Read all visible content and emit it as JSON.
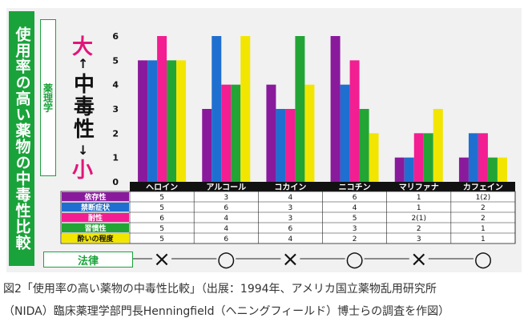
{
  "side_title": "使用率の高い薬物の中毒性比較",
  "yakuri_label": "薬理学",
  "hourei_label": "法律",
  "scale": {
    "big": "大",
    "mid": "中毒性",
    "small": "小",
    "arrow_up": "↑",
    "arrow_down": "↓"
  },
  "caption": {
    "line1": "図2「使用率の高い薬物の中毒性比較」（出展：1994年、アメリカ国立薬物乱用研究所",
    "line2": "（NIDA）臨床薬理学部門長Henningfield（ヘニングフィールド）博士らの調査を作図）"
  },
  "chart_data": {
    "type": "bar",
    "categories": [
      "ヘロイン",
      "アルコール",
      "コカイン",
      "ニコチン",
      "マリファナ",
      "カフェイン"
    ],
    "yticks": [
      "0",
      "1",
      "2",
      "3",
      "4",
      "5",
      "6"
    ],
    "ylim": [
      0,
      6
    ],
    "series": [
      {
        "name": "依存性",
        "color": "#8a1a9c",
        "values": [
          5,
          3,
          4,
          6,
          1,
          1
        ],
        "labels": [
          "5",
          "3",
          "4",
          "6",
          "1",
          "1(2)"
        ]
      },
      {
        "name": "禁断症状",
        "color": "#1f6fd1",
        "values": [
          5,
          6,
          3,
          4,
          1,
          2
        ],
        "labels": [
          "5",
          "6",
          "3",
          "4",
          "1",
          "2"
        ]
      },
      {
        "name": "耐性",
        "color": "#f21e92",
        "values": [
          6,
          4,
          3,
          5,
          2,
          2
        ],
        "labels": [
          "6",
          "4",
          "3",
          "5",
          "2(1)",
          "2"
        ]
      },
      {
        "name": "習慣性",
        "color": "#22a535",
        "values": [
          5,
          4,
          6,
          3,
          2,
          1
        ],
        "labels": [
          "5",
          "4",
          "6",
          "3",
          "2",
          "1"
        ]
      },
      {
        "name": "酔いの程度",
        "color": "#f2e600",
        "values": [
          5,
          6,
          4,
          2,
          3,
          1
        ],
        "labels": [
          "5",
          "6",
          "4",
          "2",
          "3",
          "1"
        ]
      }
    ],
    "legal": {
      "symbols": [
        "×",
        "○",
        "×",
        "○",
        "×",
        "○"
      ],
      "dash": "——"
    }
  }
}
